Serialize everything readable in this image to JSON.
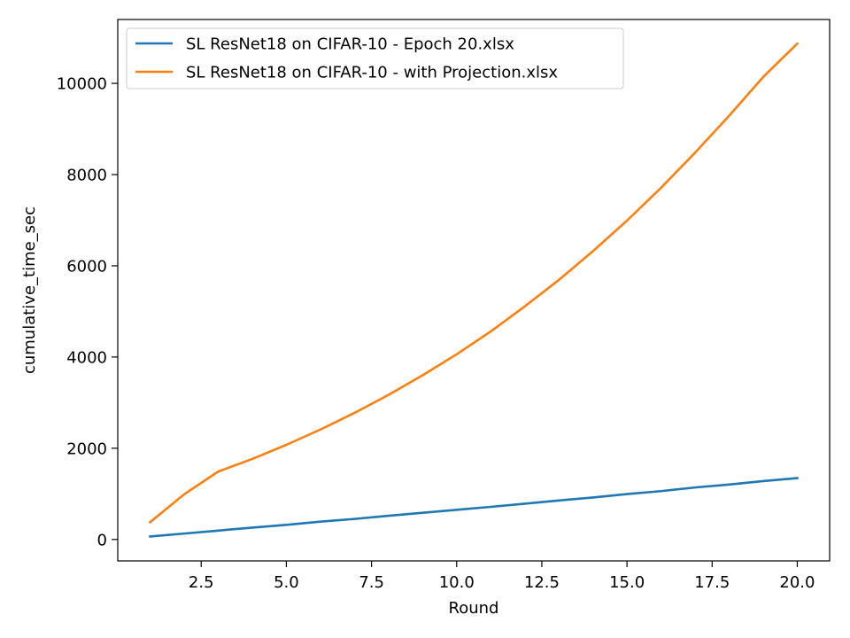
{
  "chart_data": {
    "type": "line",
    "title": "",
    "xlabel": "Round",
    "ylabel": "cumulative_time_sec",
    "xlim": [
      0.05,
      20.95
    ],
    "ylim": [
      -470,
      11400
    ],
    "x_ticks": [
      2.5,
      5.0,
      7.5,
      10.0,
      12.5,
      15.0,
      17.5,
      20.0
    ],
    "x_tick_labels": [
      "2.5",
      "5.0",
      "7.5",
      "10.0",
      "12.5",
      "15.0",
      "17.5",
      "20.0"
    ],
    "y_ticks": [
      0,
      2000,
      4000,
      6000,
      8000,
      10000
    ],
    "y_tick_labels": [
      "0",
      "2000",
      "4000",
      "6000",
      "8000",
      "10000"
    ],
    "grid": false,
    "legend_position": "top-left",
    "x": [
      1,
      2,
      3,
      4,
      5,
      6,
      7,
      8,
      9,
      10,
      11,
      12,
      13,
      14,
      15,
      16,
      17,
      18,
      19,
      20
    ],
    "series": [
      {
        "name": "SL ResNet18 on CIFAR-10 - Epoch 20.xlsx",
        "color": "#1f77b4",
        "values": [
          65,
          130,
          195,
          260,
          320,
          390,
          450,
          520,
          585,
          650,
          715,
          785,
          855,
          920,
          995,
          1060,
          1140,
          1205,
          1280,
          1345
        ]
      },
      {
        "name": "SL ResNet18 on CIFAR-10 - with Projection.xlsx",
        "color": "#ff7f0e",
        "values": [
          380,
          990,
          1490,
          1765,
          2075,
          2410,
          2775,
          3170,
          3600,
          4060,
          4560,
          5110,
          5690,
          6320,
          6990,
          7710,
          8480,
          9290,
          10140,
          10870
        ]
      }
    ]
  }
}
